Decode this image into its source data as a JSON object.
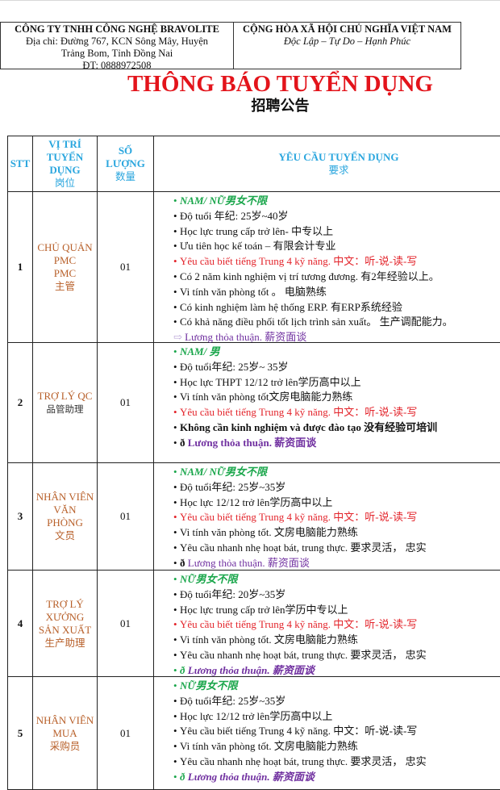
{
  "header": {
    "company": "CÔNG TY TNHH CÔNG NGHỆ BRAVOLITE",
    "address_line1": "Địa chỉ: Đường 767, KCN Sông Mây, Huyện",
    "address_line2": "Trảng Bom, Tỉnh Đồng Nai",
    "phone": "ĐT: 0888972508",
    "country": "CỘNG HÒA XÃ HỘI CHỦ NGHĨA VIỆT NAM",
    "motto": "Độc Lập – Tự Do – Hạnh Phúc"
  },
  "title": "THÔNG BÁO TUYỂN DỤNG",
  "subtitle": "招聘公告",
  "colors": {
    "title": "#e3141b",
    "header": "#2aa6de",
    "position": "#b8602a",
    "green": "#1aa64b",
    "red": "#e3242b",
    "purple": "#7030a0"
  },
  "table": {
    "headers": {
      "stt": "STT",
      "position": [
        "VỊ TRÍ",
        "TUYỂN",
        "DỤNG"
      ],
      "position_zh": "岗位",
      "quantity": [
        "SỐ",
        "LƯỢNG"
      ],
      "quantity_zh": "数量",
      "requirements": "YÊU CẦU TUYỂN DỤNG",
      "requirements_zh": "要求"
    },
    "rows": [
      {
        "stt": "1",
        "position": [
          "CHỦ QUẢN",
          "PMC",
          "PMC"
        ],
        "position_zh": "主管",
        "quantity": "01",
        "items": [
          {
            "bullet": "•",
            "marker": "",
            "text": "NAM/ NỮ男女不限",
            "tone": "gender"
          },
          {
            "bullet": "•",
            "marker": "",
            "text": "Độ tuổi 年纪: 25岁~40岁",
            "tone": "normal"
          },
          {
            "bullet": "•",
            "marker": "",
            "text": "Học lực trung cấp trở lên- 中专以上",
            "tone": "normal"
          },
          {
            "bullet": "•",
            "marker": "",
            "text": "Ưu tiên học kế toán – 有限会计专业",
            "tone": "normal"
          },
          {
            "bullet": "•",
            "marker": "",
            "text": "Yêu cầu biết tiếng Trung 4 kỹ năng. 中文：听-说-读-写",
            "tone": "red"
          },
          {
            "bullet": "•",
            "marker": "",
            "text": "Có 2 năm kinh nghiệm vị trí tương đương. 有2年经验以上。",
            "tone": "normal"
          },
          {
            "bullet": "•",
            "marker": "",
            "text": "Vi tính văn phòng tốt 。 电脑熟练",
            "tone": "normal"
          },
          {
            "bullet": "•",
            "marker": "",
            "text": "Có kinh nghiệm làm hệ thống ERP. 有ERP系统经验",
            "tone": "normal"
          },
          {
            "bullet": "•",
            "marker": "",
            "text": "Có khả năng điều phối tốt lịch trình sản xuất。 生产调配能力。",
            "tone": "normal"
          },
          {
            "bullet": "",
            "marker": "⇨ ",
            "text": "Lương thỏa thuận. 薪资面谈",
            "tone": "salary",
            "marker_tone": "p"
          }
        ]
      },
      {
        "stt": "2",
        "position": [
          "TRỢ LÝ  QC"
        ],
        "position_zh": "品管助理",
        "quantity": "01",
        "items": [
          {
            "bullet": "•",
            "marker": "",
            "text": "NAM/ 男",
            "tone": "gender"
          },
          {
            "bullet": "•",
            "marker": "",
            "text": "Độ tuổi年纪: 25岁~ 35岁",
            "tone": "normal"
          },
          {
            "bullet": "•",
            "marker": "",
            "text": "Học lực THPT 12/12  trở lên学历高中以上",
            "tone": "normal"
          },
          {
            "bullet": "•",
            "marker": "",
            "text": "Vi tính văn phòng tốt文房电脑能力熟练",
            "tone": "normal"
          },
          {
            "bullet": "•",
            "marker": "",
            "text": "Yêu cầu biết tiếng Trung 4 kỹ năng. 中文：听-说-读-写",
            "tone": "red"
          },
          {
            "bullet": "•",
            "marker": "",
            "text": "Không cần kinh nghiệm và được đào tạo 没有经验可培训",
            "tone": "bold"
          },
          {
            "bullet": "•",
            "marker": "ð ",
            "text": "Lương thỏa thuận. 薪资面谈",
            "tone": "salaryb",
            "marker_tone": "k"
          }
        ]
      },
      {
        "stt": "3",
        "position": [
          "NHÂN VIÊN",
          "VĂN",
          "PHÒNG"
        ],
        "position_zh": "文员",
        "quantity": "01",
        "items": [
          {
            "bullet": "•",
            "marker": "",
            "text": "NAM/ NỮ男女不限",
            "tone": "gender"
          },
          {
            "bullet": "•",
            "marker": "",
            "text": "Độ tuổi年纪: 25岁~35岁",
            "tone": "normal"
          },
          {
            "bullet": "•",
            "marker": "",
            "text": "Học lực 12/12 trở lên学历高中以上",
            "tone": "normal"
          },
          {
            "bullet": "•",
            "marker": "",
            "text": "Yêu cầu biết tiếng Trung 4 kỹ năng. 中文：听-说-读-写",
            "tone": "red"
          },
          {
            "bullet": "•",
            "marker": "",
            "text": "Vi tính văn phòng tốt. 文房电脑能力熟练",
            "tone": "normal"
          },
          {
            "bullet": "•",
            "marker": "",
            "text": "Yêu cầu nhanh nhẹ hoạt bát, trung thực. 要求灵活，  忠实",
            "tone": "normal"
          },
          {
            "bullet": "•",
            "marker": "ð ",
            "text": "Lương thỏa thuận. 薪资面谈",
            "tone": "salary",
            "marker_tone": "k"
          }
        ]
      },
      {
        "stt": "4",
        "position": [
          "TRỢ LÝ",
          "XƯỞNG",
          "SẢN XUẤT"
        ],
        "position_zh": "生产助理",
        "quantity": "01",
        "items": [
          {
            "bullet": "•",
            "marker": "",
            "text": "NỮ男女不限",
            "tone": "gender"
          },
          {
            "bullet": "•",
            "marker": "",
            "text": "Độ tuổi年纪: 20岁~35岁",
            "tone": "normal"
          },
          {
            "bullet": "•",
            "marker": "",
            "text": "Học lực trung cấp trở lên学历中专以上",
            "tone": "normal"
          },
          {
            "bullet": "•",
            "marker": "",
            "text": "Yêu cầu biết tiếng Trung 4 kỹ năng. 中文：听-说-读-写",
            "tone": "red"
          },
          {
            "bullet": "•",
            "marker": "",
            "text": "Vi tính văn phòng tốt. 文房电脑能力熟练",
            "tone": "normal"
          },
          {
            "bullet": "•",
            "marker": "",
            "text": "Yêu cầu nhanh nhẹ hoạt bát, trung thực. 要求灵活，  忠实",
            "tone": "normal"
          },
          {
            "bullet": "•",
            "marker": "ð ",
            "text": "Lương thỏa thuận. 薪资面谈",
            "tone": "salaryi",
            "marker_tone": "g"
          }
        ]
      },
      {
        "stt": "5",
        "position": [
          "NHÂN VIÊN",
          "MUA"
        ],
        "position_zh": "采购员",
        "quantity": "01",
        "items": [
          {
            "bullet": "•",
            "marker": "",
            "text": "NỮ男女不限",
            "tone": "gender"
          },
          {
            "bullet": "•",
            "marker": "",
            "text": "Độ tuổi年纪: 25岁~35岁",
            "tone": "normal"
          },
          {
            "bullet": "•",
            "marker": "",
            "text": "Học lực 12/12 trở lên学历高中以上",
            "tone": "normal"
          },
          {
            "bullet": "•",
            "marker": "",
            "text": "Yêu cầu biết tiếng Trung 4 kỹ năng. 中文：听-说-读-写",
            "tone": "normal"
          },
          {
            "bullet": "•",
            "marker": "",
            "text": "Vi tính văn phòng tốt. 文房电脑能力熟练",
            "tone": "normal"
          },
          {
            "bullet": "•",
            "marker": "",
            "text": "Yêu cầu nhanh nhẹ hoạt bát, trung thực. 要求灵活，  忠实",
            "tone": "normal"
          },
          {
            "bullet": "•",
            "marker": "ð ",
            "text": "Lương thỏa thuận. 薪资面谈",
            "tone": "salaryi",
            "marker_tone": "g"
          }
        ]
      }
    ]
  }
}
